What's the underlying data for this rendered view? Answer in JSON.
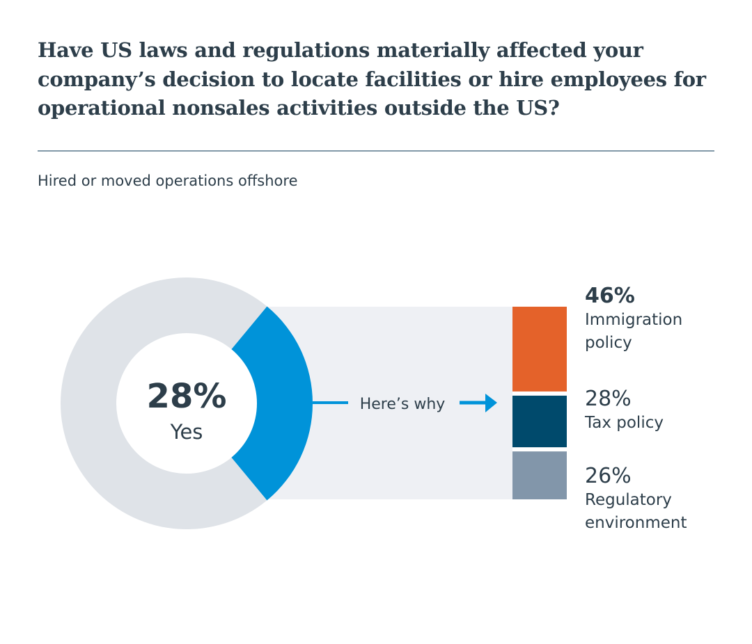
{
  "header": {
    "title": "Have US laws and regulations materially affected your company’s decision to locate facilities or hire employees for operational nonsales activities outside the US?",
    "subtitle": "Hired or moved operations offshore"
  },
  "chart_data": [
    {
      "type": "pie",
      "variant": "donut",
      "slices": [
        {
          "label": "Yes",
          "value": 28,
          "color": "#0093d9"
        },
        {
          "label": "",
          "value": 72,
          "color": "#dfe3e8"
        }
      ],
      "center_value": "28%",
      "center_label": "Yes"
    },
    {
      "type": "bar",
      "variant": "stacked-100",
      "connector_label": "Here’s why",
      "categories": [
        "Immigration policy",
        "Tax policy",
        "Regulatory environment"
      ],
      "values": [
        46,
        28,
        26
      ],
      "value_labels": [
        "46%",
        "28%",
        "26%"
      ],
      "label_lines": [
        [
          "Immigration",
          "policy"
        ],
        [
          "Tax policy"
        ],
        [
          "Regulatory",
          "environment"
        ]
      ],
      "colors": [
        "#e4622a",
        "#004a6c",
        "#8296aa"
      ]
    }
  ],
  "colors": {
    "text": "#2d3e4a",
    "accent": "#0093d9",
    "panel": "#eef0f4",
    "rule": "#8198a8"
  }
}
